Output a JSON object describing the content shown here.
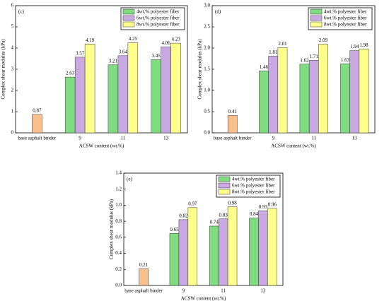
{
  "chart_data": [
    {
      "type": "bar",
      "panel_label": "(c)",
      "xlabel": "ACSW content (wt.%)",
      "ylabel": "Complex shear modulus (kPa)",
      "categories": [
        "base asphalt binder",
        "9",
        "11",
        "13"
      ],
      "series": [
        {
          "color": "#f9c08e",
          "values": [
            0.87,
            null,
            null,
            null
          ]
        },
        {
          "name": "4wt.% polyester fiber",
          "color": "#80dc80",
          "values": [
            null,
            2.63,
            3.21,
            3.45
          ]
        },
        {
          "name": "6wt.% polyester fiber",
          "color": "#c9a9e2",
          "values": [
            null,
            3.57,
            3.64,
            4.06
          ]
        },
        {
          "name": "8wt.% polyester fiber",
          "color": "#ffff8c",
          "values": [
            null,
            4.19,
            4.25,
            4.23
          ]
        }
      ],
      "ylim": [
        0,
        6
      ],
      "yticks": [
        0,
        1,
        2,
        3,
        4,
        5,
        6
      ],
      "legend": "upper right"
    },
    {
      "type": "bar",
      "panel_label": "(d)",
      "xlabel": "ACSW content (wt.%)",
      "ylabel": "Complex shear modulus (kPa)",
      "categories": [
        "base asphalt binder",
        "9",
        "11",
        "13"
      ],
      "series": [
        {
          "color": "#f9c08e",
          "values": [
            0.41,
            null,
            null,
            null
          ]
        },
        {
          "name": "4wt.% polyester fiber",
          "color": "#80dc80",
          "values": [
            null,
            1.46,
            1.62,
            1.63
          ]
        },
        {
          "name": "6wt.% polyester fiber",
          "color": "#c9a9e2",
          "values": [
            null,
            1.81,
            1.71,
            1.94
          ]
        },
        {
          "name": "8wt.% polyester fiber",
          "color": "#ffff8c",
          "values": [
            null,
            2.01,
            2.09,
            1.98
          ]
        }
      ],
      "ylim": [
        0,
        3
      ],
      "yticks": [
        {
          "value": 0,
          "label": "0.0"
        },
        0.5,
        {
          "value": 1,
          "label": "1.0"
        },
        1.5,
        {
          "value": 2,
          "label": "2.0"
        },
        2.5,
        {
          "value": 3,
          "label": "3.0"
        }
      ],
      "legend": "upper right"
    },
    {
      "type": "bar",
      "panel_label": "(e)",
      "xlabel": "ACSW content (wt.%)",
      "ylabel": "Complex shear modulus (kPa)",
      "categories": [
        "base asphalt binder",
        "9",
        "11",
        "13"
      ],
      "series": [
        {
          "color": "#f9c08e",
          "values": [
            0.21,
            null,
            null,
            null
          ]
        },
        {
          "name": "4wt.% polyester fiber",
          "color": "#80dc80",
          "values": [
            null,
            0.65,
            0.74,
            0.84
          ]
        },
        {
          "name": "6wt.% polyester fiber",
          "color": "#c9a9e2",
          "values": [
            null,
            0.82,
            0.83,
            0.93
          ]
        },
        {
          "name": "8wt.% polyester fiber",
          "color": "#ffff8c",
          "values": [
            null,
            0.97,
            0.98,
            0.96
          ]
        }
      ],
      "ylim": [
        0,
        1.4
      ],
      "yticks": [
        {
          "value": 0,
          "label": "0.0"
        },
        0.2,
        0.4,
        0.6,
        0.8,
        {
          "value": 1,
          "label": "1.0"
        },
        1.2,
        1.4
      ],
      "legend": "upper right"
    }
  ]
}
